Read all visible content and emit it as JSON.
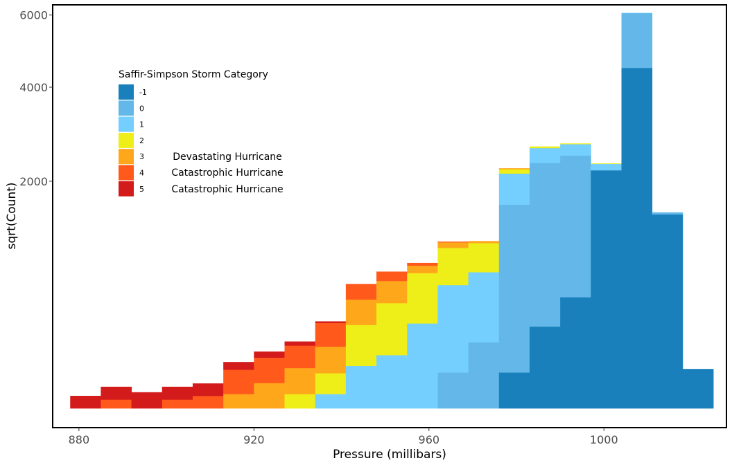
{
  "chart_data": {
    "type": "bar",
    "stacked": true,
    "y_scale": "sqrt",
    "xlabel": "Pressure (millibars)",
    "ylabel": "sqrt(Count)",
    "xlim": [
      874,
      1028
    ],
    "ylim": [
      0,
      6250
    ],
    "x_ticks": [
      880,
      920,
      960,
      1000
    ],
    "y_ticks": [
      2000,
      4000,
      6000
    ],
    "grid": false,
    "legend_position": "top-left",
    "bin_width": 7,
    "bins": [
      881.5,
      888.5,
      895.5,
      902.5,
      909.5,
      916.5,
      923.5,
      930.5,
      937.5,
      944.5,
      951.5,
      958.5,
      965.5,
      972.5,
      979.5,
      986.5,
      993.5,
      1000.5,
      1007.5,
      1014.5,
      1021.5
    ],
    "series": [
      {
        "name": "-1",
        "color": "#1a80bb",
        "values": [
          0,
          0,
          0,
          0,
          0,
          0,
          0,
          0,
          0,
          0,
          0,
          0,
          0,
          0,
          50,
          260,
          480,
          2200,
          4500,
          1460,
          60
        ]
      },
      {
        "name": "0",
        "color": "#63b8e9",
        "values": [
          0,
          0,
          0,
          0,
          0,
          0,
          0,
          0,
          0,
          0,
          0,
          0,
          50,
          170,
          1560,
          2080,
          2000,
          0,
          1560,
          30,
          0
        ]
      },
      {
        "name": "1",
        "color": "#74cfff",
        "values": [
          0,
          0,
          0,
          0,
          0,
          0,
          0,
          0,
          8,
          70,
          110,
          280,
          540,
          550,
          530,
          290,
          230,
          120,
          5,
          0,
          0
        ]
      },
      {
        "name": "2",
        "color": "#eeee19",
        "values": [
          0,
          0,
          0,
          0,
          0,
          0,
          0,
          8,
          40,
          200,
          320,
          430,
          410,
          340,
          80,
          30,
          12,
          6,
          0,
          0,
          0
        ]
      },
      {
        "name": "3",
        "color": "#ffa71b",
        "values": [
          0,
          0,
          0,
          0,
          0,
          8,
          25,
          55,
          100,
          190,
          200,
          80,
          70,
          25,
          15,
          0,
          0,
          0,
          0,
          0,
          0
        ]
      },
      {
        "name": "4",
        "color": "#ff5a1c",
        "values": [
          0,
          3,
          0,
          3,
          6,
          50,
          75,
          90,
          135,
          140,
          95,
          30,
          8,
          0,
          0,
          0,
          0,
          0,
          0,
          0,
          0
        ]
      },
      {
        "name": "5",
        "color": "#d41b1b",
        "values": [
          6,
          15,
          10,
          15,
          18,
          25,
          25,
          20,
          10,
          0,
          0,
          0,
          0,
          0,
          0,
          0,
          0,
          0,
          0,
          0,
          0
        ]
      }
    ],
    "legend_title": "Saffir-Simpson Storm Category",
    "annotations": [
      "Devastating Hurricane",
      "Catastrophic Hurricane",
      "Catastrophic Hurricane"
    ]
  }
}
